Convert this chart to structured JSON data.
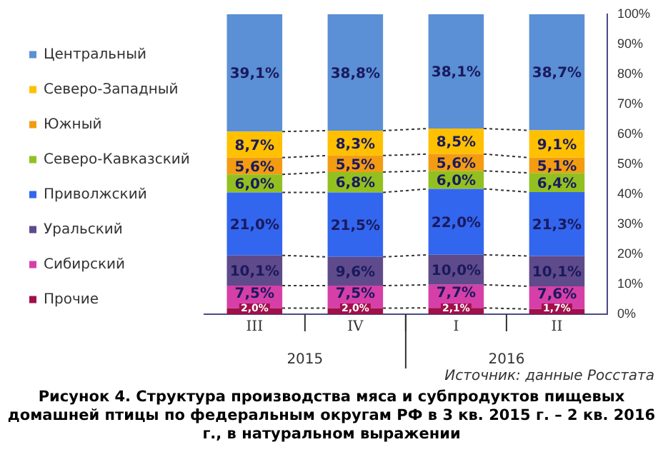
{
  "chart_data": {
    "type": "bar",
    "stacked": true,
    "title": "Рисунок 4. Структура производства мяса и субпродуктов пищевых домашней птицы по федеральным округам РФ в 3 кв. 2015 г. – 2 кв. 2016 г., в натуральном выражении",
    "categories": [
      "III",
      "IV",
      "I",
      "II"
    ],
    "annotations": [
      "2015",
      "2016",
      "Источник: данные Росстата"
    ],
    "series": [
      {
        "name": "Прочие",
        "color": "#a0104a",
        "values": [
          2.0,
          2.0,
          2.1,
          1.7
        ],
        "value_labels": [
          "2,0%",
          "2,0%",
          "2,1%",
          "1,7%"
        ]
      },
      {
        "name": "Сибирский",
        "color": "#d63fa8",
        "values": [
          7.5,
          7.5,
          7.7,
          7.6
        ],
        "value_labels": [
          "7,5%",
          "7,5%",
          "7,7%",
          "7,6%"
        ]
      },
      {
        "name": "Уральский",
        "color": "#5f4a8b",
        "values": [
          10.1,
          9.6,
          10.0,
          10.1
        ],
        "value_labels": [
          "10,1%",
          "9,6%",
          "10,0%",
          "10,1%"
        ]
      },
      {
        "name": "Приволжский",
        "color": "#3366ee",
        "values": [
          21.0,
          21.5,
          22.0,
          21.3
        ],
        "value_labels": [
          "21,0%",
          "21,5%",
          "22,0%",
          "21,3%"
        ]
      },
      {
        "name": "Северо-Кавказский",
        "color": "#92c020",
        "values": [
          6.0,
          6.8,
          6.0,
          6.4
        ],
        "value_labels": [
          "6,0%",
          "6,8%",
          "6,0%",
          "6,4%"
        ]
      },
      {
        "name": "Южный",
        "color": "#f39c12",
        "values": [
          5.6,
          5.5,
          5.6,
          5.1
        ],
        "value_labels": [
          "5,6%",
          "5,5%",
          "5,6%",
          "5,1%"
        ]
      },
      {
        "name": "Северо-Западный",
        "color": "#ffc000",
        "values": [
          8.7,
          8.3,
          8.5,
          9.1
        ],
        "value_labels": [
          "8,7%",
          "8,3%",
          "8,5%",
          "9,1%"
        ]
      },
      {
        "name": "Центральный",
        "color": "#5b8fd6",
        "values": [
          39.1,
          38.8,
          38.1,
          38.7
        ],
        "value_labels": [
          "39,1%",
          "38,8%",
          "38,1%",
          "38,7%"
        ]
      }
    ],
    "ylim": [
      0,
      100
    ],
    "yticks": [
      {
        "value": 0,
        "label": "0%"
      },
      {
        "value": 10,
        "label": "10%"
      },
      {
        "value": 20,
        "label": "20%"
      },
      {
        "value": 30,
        "label": "30%"
      },
      {
        "value": 40,
        "label": "40%"
      },
      {
        "value": 50,
        "label": "50%"
      },
      {
        "value": 60,
        "label": "60%"
      },
      {
        "value": 70,
        "label": "70%"
      },
      {
        "value": 80,
        "label": "80%"
      },
      {
        "value": 90,
        "label": "90%"
      },
      {
        "value": 100,
        "label": "100%"
      }
    ],
    "legend": "left",
    "grid": false
  }
}
